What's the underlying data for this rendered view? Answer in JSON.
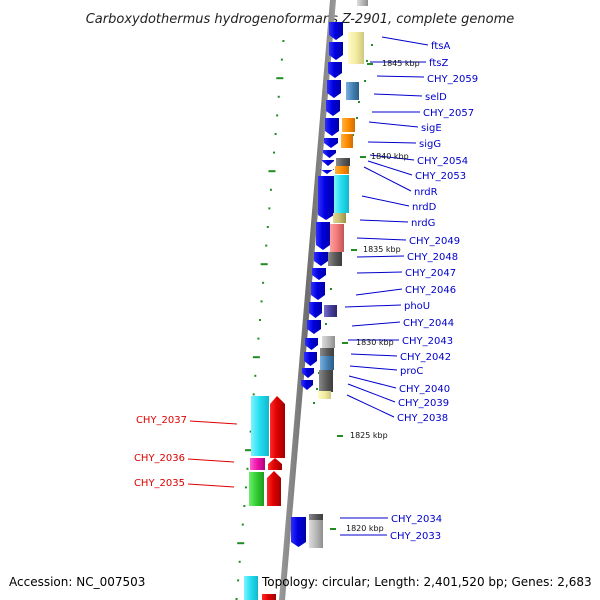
{
  "title": "Carboxydothermus hydrogenoformans Z-2901, complete genome",
  "footer": {
    "accession": "Accession: NC_007503",
    "info": "Topology: circular; Length: 2,401,520 bp; Genes: 2,683"
  },
  "colors": {
    "backbone": "#808080",
    "forward_strand_label": "#0000cc",
    "reverse_strand_label": "#dd0000",
    "tick": "#228b22",
    "cds_blue": "#1010ee",
    "cds_red": "#ee1010"
  },
  "kbp_markers": [
    "1845 kbp",
    "1840 kbp",
    "1835 kbp",
    "1830 kbp",
    "1825 kbp",
    "1820 kbp"
  ],
  "forward_genes": [
    "ftsA",
    "ftsZ",
    "CHY_2059",
    "selD",
    "CHY_2057",
    "sigE",
    "sigG",
    "CHY_2054",
    "CHY_2053",
    "nrdR",
    "nrdD",
    "nrdG",
    "CHY_2049",
    "CHY_2048",
    "CHY_2047",
    "CHY_2046",
    "phoU",
    "CHY_2044",
    "CHY_2043",
    "CHY_2042",
    "proC",
    "CHY_2040",
    "CHY_2039",
    "CHY_2038",
    "CHY_2034",
    "CHY_2033"
  ],
  "reverse_genes": [
    "CHY_2037",
    "CHY_2036",
    "CHY_2035"
  ]
}
